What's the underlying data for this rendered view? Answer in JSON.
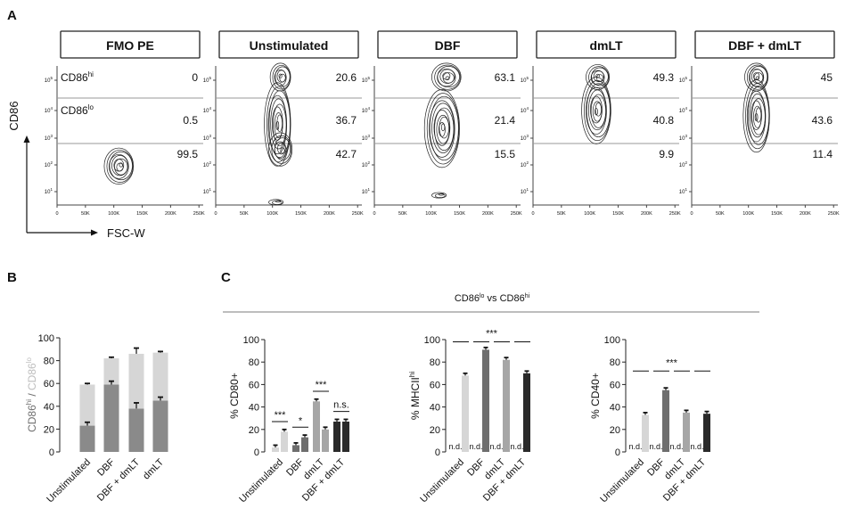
{
  "panels": {
    "a": "A",
    "b": "B",
    "c": "C"
  },
  "flow": {
    "y_axis_label": "CD86",
    "x_axis_label": "FSC-W",
    "gate_labels": {
      "hi": "CD86",
      "hi_sup": "hi",
      "lo": "CD86",
      "lo_sup": "lo"
    },
    "x_ticks": [
      "0",
      "50K",
      "100K",
      "150K",
      "200K",
      "250K"
    ],
    "y_ticks": [
      {
        "base": "10",
        "exp": "5"
      },
      {
        "base": "10",
        "exp": "4"
      },
      {
        "base": "10",
        "exp": "3"
      },
      {
        "base": "10",
        "exp": "2"
      },
      {
        "base": "10",
        "exp": "1"
      }
    ],
    "samples": [
      {
        "title": "FMO PE",
        "hi": "0",
        "lo": "0.5",
        "neg": "99.5"
      },
      {
        "title": "Unstimulated",
        "hi": "20.6",
        "lo": "36.7",
        "neg": "42.7"
      },
      {
        "title": "DBF",
        "hi": "63.1",
        "lo": "21.4",
        "neg": "15.5"
      },
      {
        "title": "dmLT",
        "hi": "49.3",
        "lo": "40.8",
        "neg": "9.9"
      },
      {
        "title": "DBF + dmLT",
        "hi": "45",
        "lo": "43.6",
        "neg": "11.4"
      }
    ]
  },
  "chart_data": [
    {
      "id": "B",
      "type": "bar",
      "stacked": true,
      "ylabel": "CD86hi / CD86lo",
      "ylabel_parts": {
        "a": "CD86",
        "a_sup": "hi",
        "sep": " / ",
        "b": "CD86",
        "b_sup": "lo"
      },
      "ylim": [
        0,
        100
      ],
      "yticks": [
        "0",
        "20",
        "40",
        "60",
        "80",
        "100"
      ],
      "categories": [
        "Unstimulated",
        "DBF",
        "DBF + dmLT",
        "dmLT"
      ],
      "series": [
        {
          "name": "CD86hi",
          "color": "#8a8a8a",
          "values": [
            23,
            59,
            38,
            45
          ],
          "errors": [
            3,
            3,
            5,
            3
          ]
        },
        {
          "name": "CD86lo",
          "color": "#d6d6d6",
          "values": [
            36,
            23,
            48,
            42
          ],
          "errors": [
            1,
            1,
            5,
            1
          ]
        }
      ]
    },
    {
      "id": "C1",
      "type": "bar",
      "title": "CD86lo vs CD86hi",
      "title_parts": {
        "a": "CD86",
        "a_sup": "lo",
        "mid": " vs ",
        "b": "CD86",
        "b_sup": "hi"
      },
      "ylabel": "% CD80+",
      "ylabel_parts": {
        "a": "% CD80+",
        "a_sup": ""
      },
      "ylim": [
        0,
        100
      ],
      "yticks": [
        "0",
        "20",
        "40",
        "60",
        "80",
        "100"
      ],
      "categories": [
        "Unstimulated",
        "DBF",
        "dmLT",
        "DBF + dmLT"
      ],
      "lo_values": [
        4,
        6,
        45,
        27
      ],
      "hi_values": [
        18,
        13,
        20,
        27
      ],
      "colors": [
        "#d6d6d6",
        "#6e6e6e",
        "#a6a6a6",
        "#2a2a2a"
      ],
      "nd_label": "n.d.",
      "nd": [],
      "significance": [
        "***",
        "*",
        "***",
        "n.s."
      ]
    },
    {
      "id": "C2",
      "type": "bar",
      "ylabel": "% MHCIIhi",
      "ylabel_parts": {
        "a": "% MHCII",
        "a_sup": "hi"
      },
      "ylim": [
        0,
        100
      ],
      "yticks": [
        "0",
        "20",
        "40",
        "60",
        "80",
        "100"
      ],
      "categories": [
        "Unstimulated",
        "DBF",
        "dmLT",
        "DBF + dmLT"
      ],
      "lo_values": [
        0,
        0,
        0,
        0
      ],
      "hi_values": [
        68,
        91,
        82,
        70
      ],
      "colors": [
        "#d6d6d6",
        "#6e6e6e",
        "#a6a6a6",
        "#2a2a2a"
      ],
      "nd_label": "n.d.",
      "nd": [
        "lo",
        "lo",
        "lo",
        "lo"
      ],
      "significance": [
        "***"
      ]
    },
    {
      "id": "C3",
      "type": "bar",
      "ylabel": "% CD40+",
      "ylabel_parts": {
        "a": "% CD40+",
        "a_sup": ""
      },
      "ylim": [
        0,
        100
      ],
      "yticks": [
        "0",
        "20",
        "40",
        "60",
        "80",
        "100"
      ],
      "categories": [
        "Unstimulated",
        "DBF",
        "dmLT",
        "DBF + dmLT"
      ],
      "lo_values": [
        0,
        0,
        0,
        0
      ],
      "hi_values": [
        33,
        55,
        35,
        34
      ],
      "colors": [
        "#d6d6d6",
        "#6e6e6e",
        "#a6a6a6",
        "#2a2a2a"
      ],
      "nd_label": "n.d.",
      "nd": [
        "lo",
        "lo",
        "lo",
        "lo"
      ],
      "significance": [
        "***"
      ]
    }
  ]
}
